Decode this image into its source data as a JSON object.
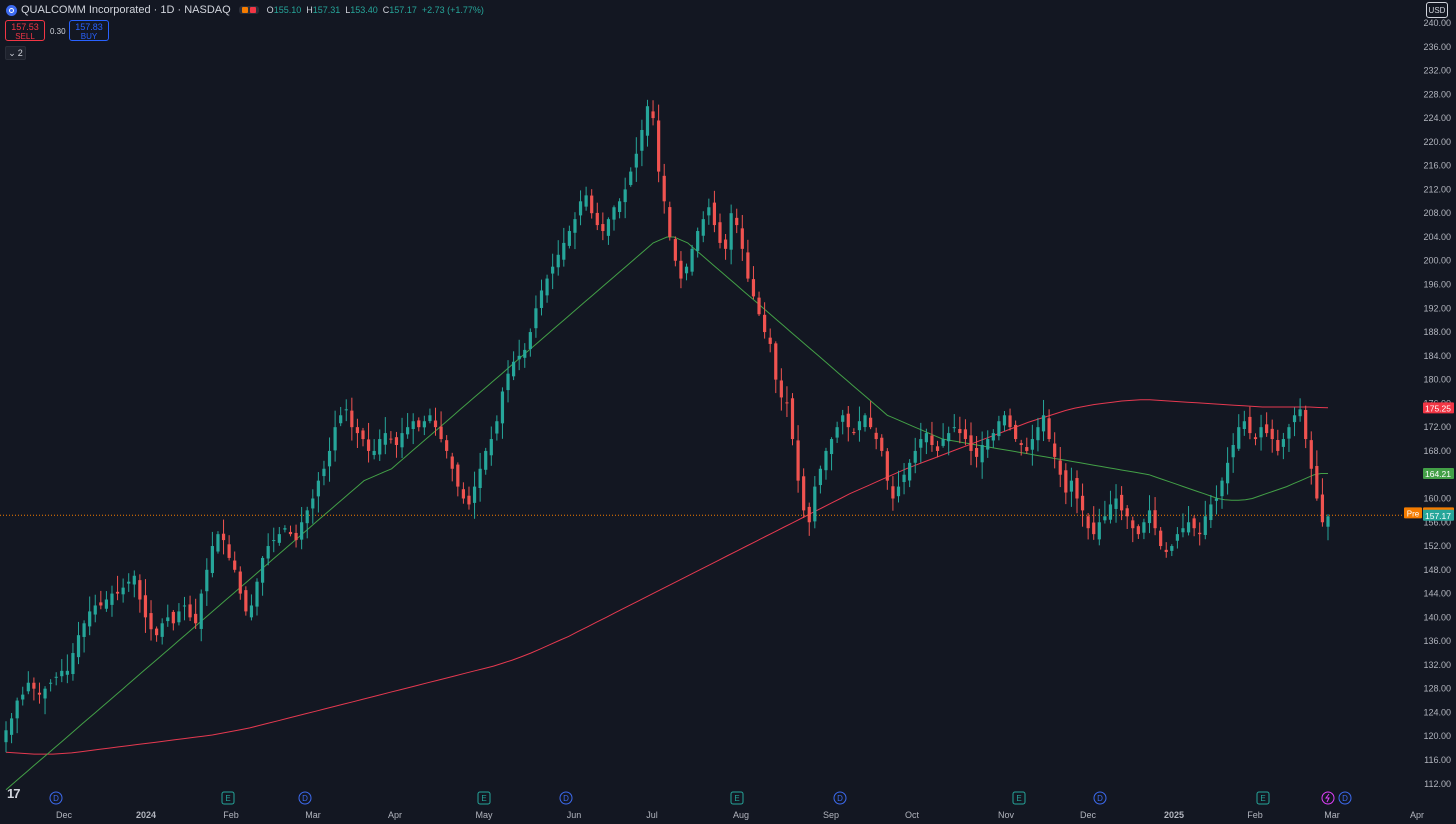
{
  "header": {
    "title": "QUALCOMM Incorporated · 1D · NASDAQ",
    "open_label": "O",
    "open": "155.10",
    "high_label": "H",
    "high": "157.31",
    "low_label": "L",
    "low": "153.40",
    "close_label": "C",
    "close": "157.17",
    "change": "+2.73 (+1.77%)"
  },
  "trade": {
    "sell_price": "157.53",
    "sell_label": "SELL",
    "buy_price": "157.83",
    "buy_label": "BUY",
    "spread": "0.30"
  },
  "indicators_toggle": "2",
  "currency": "USD",
  "colors": {
    "up": "#26a69a",
    "down": "#f05350",
    "ma_fast": "#43a047",
    "ma_slow": "#e53950",
    "pre": "#f57c00"
  },
  "chart_data": {
    "type": "candlestick",
    "yaxis_ticks": [
      112,
      116,
      120,
      124,
      128,
      132,
      136,
      140,
      144,
      148,
      152,
      156,
      160,
      164,
      168,
      172,
      176,
      180,
      184,
      188,
      192,
      196,
      200,
      204,
      208,
      212,
      216,
      220,
      224,
      228,
      232,
      236,
      240
    ],
    "ylim": [
      110,
      241
    ],
    "x_labels": [
      "Dec",
      "2024",
      "Feb",
      "Mar",
      "Apr",
      "May",
      "Jun",
      "Jul",
      "Aug",
      "Sep",
      "Oct",
      "Nov",
      "Dec",
      "2025",
      "Feb",
      "Mar",
      "Apr"
    ],
    "price_tags": [
      {
        "value": 175.25,
        "label": "175.25",
        "color": "#f23645"
      },
      {
        "value": 164.21,
        "label": "164.21",
        "color": "#43a047"
      },
      {
        "value": 157.57,
        "label": "157.57",
        "prefix": "Pre",
        "color": "#f57c00"
      },
      {
        "value": 157.17,
        "label": "157.17",
        "color": "#26a69a"
      }
    ],
    "event_markers": [
      {
        "letter": "D",
        "type": "dividend"
      },
      {
        "letter": "E",
        "type": "earnings"
      },
      {
        "letter": "D",
        "type": "dividend"
      },
      {
        "letter": "E",
        "type": "earnings"
      },
      {
        "letter": "D",
        "type": "dividend"
      },
      {
        "letter": "E",
        "type": "earnings"
      },
      {
        "letter": "D",
        "type": "dividend"
      },
      {
        "letter": "E",
        "type": "earnings"
      },
      {
        "letter": "D",
        "type": "dividend"
      },
      {
        "letter": "E",
        "type": "earnings"
      },
      {
        "letter": "",
        "type": "split"
      },
      {
        "letter": "D",
        "type": "dividend"
      }
    ],
    "close_series": [
      121,
      123,
      126,
      127,
      129,
      128,
      127,
      128,
      129,
      130,
      131,
      131,
      134,
      137,
      139,
      141,
      142,
      142,
      143,
      144,
      144,
      145,
      146,
      147,
      143,
      140,
      138,
      137,
      139,
      140,
      139,
      141,
      142,
      140,
      139,
      144,
      148,
      152,
      154,
      153,
      150,
      148,
      144,
      141,
      142,
      146,
      150,
      152,
      153,
      154,
      155,
      154,
      153,
      156,
      158,
      160,
      163,
      165,
      168,
      172,
      174,
      175,
      172,
      171,
      170,
      168,
      168,
      170,
      171,
      170,
      169,
      171,
      172,
      173,
      172,
      173,
      174,
      172,
      170,
      168,
      165,
      162,
      160,
      159,
      162,
      165,
      168,
      170,
      173,
      178,
      181,
      183,
      184,
      185,
      188,
      192,
      195,
      197,
      199,
      201,
      203,
      205,
      207,
      210,
      211,
      208,
      206,
      205,
      207,
      209,
      210,
      212,
      215,
      218,
      222,
      226,
      224,
      215,
      210,
      204,
      200,
      197,
      199,
      202,
      205,
      207,
      209,
      206,
      203,
      202,
      208,
      206,
      202,
      197,
      194,
      191,
      188,
      186,
      180,
      177,
      176,
      170,
      163,
      158,
      156,
      162,
      165,
      168,
      170,
      172,
      174,
      172,
      171,
      173,
      174,
      172,
      170,
      168,
      163,
      160,
      162,
      164,
      166,
      168,
      170,
      171,
      169,
      168,
      170,
      171,
      172,
      171,
      170,
      168,
      167,
      169,
      170,
      171,
      173,
      174,
      172,
      170,
      169,
      168,
      170,
      172,
      174,
      170,
      167,
      164,
      161,
      163,
      160,
      158,
      155,
      154,
      156,
      157,
      159,
      160,
      158,
      157,
      155,
      154,
      156,
      158,
      155,
      152,
      151,
      152,
      154,
      155,
      156,
      155,
      154,
      157,
      159,
      160,
      163,
      166,
      169,
      172,
      173,
      171,
      170,
      172,
      171,
      170,
      168,
      170,
      172,
      174,
      175,
      170,
      165,
      160,
      156,
      157
    ],
    "ma_fast_series": [
      111,
      112,
      113,
      114,
      115,
      116,
      117,
      118,
      119,
      120,
      121,
      122,
      123,
      124,
      125,
      126,
      127,
      128,
      129,
      130,
      131,
      132,
      133,
      134,
      135,
      136,
      137,
      138,
      139,
      140,
      141,
      142,
      143,
      144,
      145,
      146,
      147,
      148,
      149,
      150,
      151,
      152,
      153,
      154,
      155,
      156,
      157,
      158,
      159,
      160,
      161,
      162,
      163,
      163.5,
      164,
      164.5,
      165,
      166,
      167,
      168,
      169,
      170,
      171,
      172,
      173,
      174,
      175,
      176,
      177,
      178,
      179,
      180,
      181,
      182,
      183,
      184,
      185,
      186,
      187,
      188,
      189,
      190,
      191,
      192,
      193,
      194,
      195,
      196,
      197,
      198,
      199,
      200,
      201,
      202,
      203,
      203.5,
      204,
      204,
      203.5,
      203,
      202,
      201,
      200,
      199,
      198,
      197,
      196,
      195,
      194,
      193,
      192,
      191,
      190,
      189,
      188,
      187,
      186,
      185,
      184,
      183,
      182,
      181,
      180,
      179,
      178,
      177,
      176,
      175,
      174,
      173.5,
      173,
      172.5,
      172,
      171.5,
      171,
      170.5,
      170,
      169.8,
      169.6,
      169.4,
      169.2,
      169,
      168.8,
      168.6,
      168.4,
      168.2,
      168,
      167.8,
      167.6,
      167.4,
      167.2,
      167,
      166.8,
      166.6,
      166.4,
      166.2,
      166,
      165.8,
      165.6,
      165.4,
      165.2,
      165,
      164.8,
      164.6,
      164.4,
      164.2,
      164,
      163.6,
      163.2,
      162.8,
      162.4,
      162,
      161.6,
      161.2,
      160.8,
      160.4,
      160,
      159.8,
      159.7,
      159.7,
      159.8,
      160,
      160.4,
      160.8,
      161.2,
      161.6,
      162,
      162.5,
      163,
      163.5,
      164,
      164.2,
      164.21
    ],
    "ma_slow_series": [
      117.3,
      117.2,
      117.1,
      117.0,
      117.0,
      117.0,
      117.1,
      117.2,
      117.4,
      117.6,
      117.8,
      118.0,
      118.2,
      118.4,
      118.6,
      118.8,
      119.0,
      119.2,
      119.4,
      119.6,
      119.8,
      120.0,
      120.2,
      120.5,
      120.8,
      121.1,
      121.4,
      121.8,
      122.2,
      122.6,
      123.0,
      123.4,
      123.8,
      124.2,
      124.6,
      125.0,
      125.4,
      125.8,
      126.2,
      126.6,
      127.0,
      127.4,
      127.8,
      128.2,
      128.6,
      129.0,
      129.4,
      129.8,
      130.2,
      130.6,
      131.0,
      131.4,
      131.8,
      132.3,
      132.8,
      133.4,
      134.0,
      134.7,
      135.4,
      136.1,
      136.8,
      137.6,
      138.4,
      139.2,
      140.0,
      140.8,
      141.6,
      142.4,
      143.2,
      144.0,
      144.8,
      145.6,
      146.4,
      147.2,
      148.0,
      148.8,
      149.6,
      150.4,
      151.2,
      152.0,
      152.8,
      153.6,
      154.4,
      155.2,
      156.0,
      156.8,
      157.6,
      158.4,
      159.2,
      160.0,
      160.8,
      161.5,
      162.2,
      162.9,
      163.6,
      164.3,
      165.0,
      165.6,
      166.2,
      166.8,
      167.4,
      168.0,
      168.6,
      169.2,
      169.8,
      170.4,
      171.0,
      171.6,
      172.2,
      172.8,
      173.3,
      173.8,
      174.3,
      174.8,
      175.2,
      175.5,
      175.8,
      176.0,
      176.2,
      176.4,
      176.5,
      176.6,
      176.6,
      176.5,
      176.4,
      176.3,
      176.2,
      176.1,
      176.0,
      175.9,
      175.8,
      175.7,
      175.6,
      175.5,
      175.4,
      175.4,
      175.4,
      175.4,
      175.4,
      175.4,
      175.3,
      175.25
    ]
  }
}
